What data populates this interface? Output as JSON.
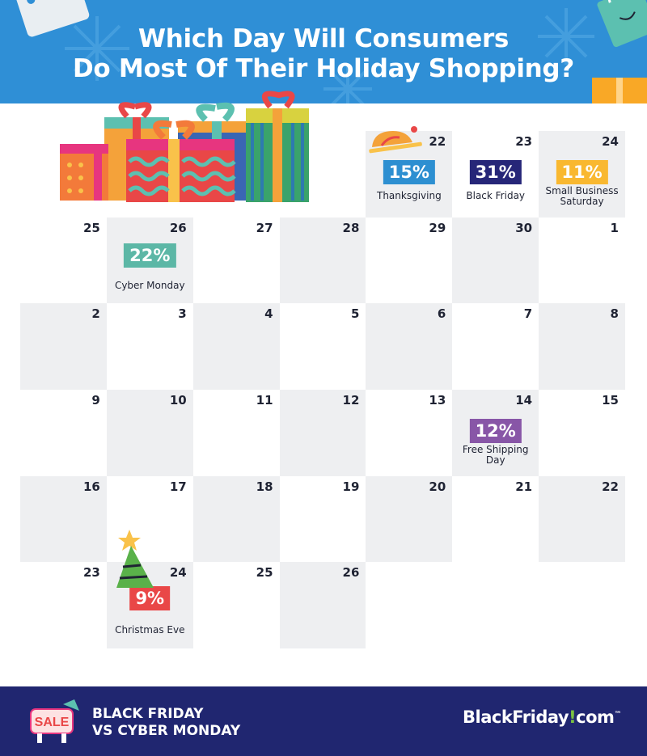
{
  "title_line1": "Which Day Will Consumers",
  "title_line2": "Do Most Of Their Holiday Shopping?",
  "chart_data": {
    "type": "table",
    "title": "Which Day Will Consumers Do Most Of Their Holiday Shopping?",
    "days": [
      {
        "day": "22",
        "pct": "15%",
        "label": "Thanksgiving",
        "value": 15
      },
      {
        "day": "23",
        "pct": "31%",
        "label": "Black Friday",
        "value": 31
      },
      {
        "day": "24",
        "pct": "11%",
        "label": "Small Business Saturday",
        "value": 11
      },
      {
        "day": "26",
        "pct": "22%",
        "label": "Cyber Monday",
        "value": 22
      },
      {
        "day": "14",
        "pct": "12%",
        "label": "Free Shipping Day",
        "value": 12
      },
      {
        "day": "24",
        "pct": "9%",
        "label": "Christmas Eve",
        "value": 9
      }
    ],
    "colors": {
      "Thanksgiving": "#2d8fd1",
      "Black Friday": "#262678",
      "Small Business Saturday": "#f9b830",
      "Cyber Monday": "#5cb7a6",
      "Free Shipping Day": "#8856a7",
      "Christmas Eve": "#e94747"
    }
  },
  "calendar": [
    [
      "",
      "",
      "",
      "",
      "22",
      "23",
      "24"
    ],
    [
      "25",
      "26",
      "27",
      "28",
      "29",
      "30",
      "1"
    ],
    [
      "2",
      "3",
      "4",
      "5",
      "6",
      "7",
      "8"
    ],
    [
      "9",
      "10",
      "11",
      "12",
      "13",
      "14",
      "15"
    ],
    [
      "16",
      "17",
      "18",
      "19",
      "20",
      "21",
      "22"
    ],
    [
      "23",
      "24",
      "25",
      "26",
      "",
      "",
      ""
    ]
  ],
  "footer": {
    "sale_sign": "SALE",
    "line1": "BLACK FRIDAY",
    "line2": "VS CYBER MONDAY",
    "brand_a": "BlackFriday",
    "brand_bang": "!",
    "brand_b": "com",
    "brand_tm": "™"
  }
}
